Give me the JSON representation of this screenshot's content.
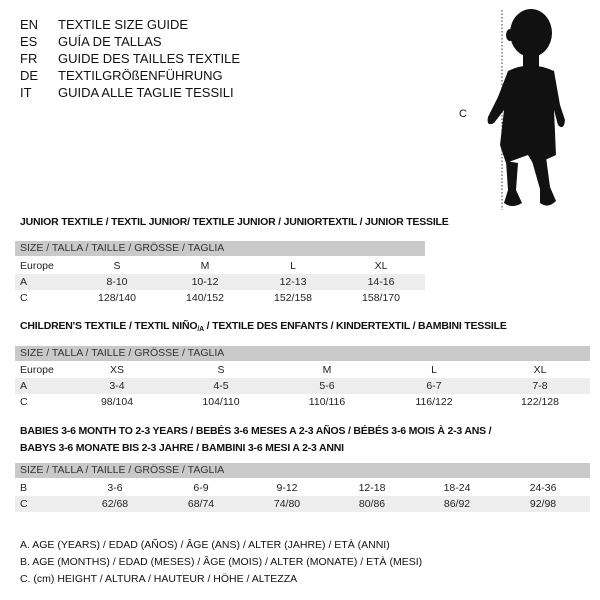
{
  "languages": [
    {
      "code": "EN",
      "text": "TEXTILE SIZE GUIDE"
    },
    {
      "code": "ES",
      "text": "GUÍA DE TALLAS"
    },
    {
      "code": "FR",
      "text": "GUIDE DES TAILLES TEXTILE"
    },
    {
      "code": "DE",
      "text": "TEXTILGRÖßENFÜHRUNG"
    },
    {
      "code": "IT",
      "text": "GUIDA ALLE TAGLIE TESSILI"
    }
  ],
  "figure": {
    "height_label": "C",
    "icon": "baby-silhouette"
  },
  "junior": {
    "title": "JUNIOR TEXTILE / TEXTIL JUNIOR/ TEXTILE JUNIOR / JUNIORTEXTIL / JUNIOR TESSILE",
    "header": "SIZE / TALLA / TAILLE / GRÖSSE / TAGLIA",
    "rows": [
      {
        "label": "Europe",
        "values": [
          "S",
          "M",
          "L",
          "XL"
        ]
      },
      {
        "label": "A",
        "values": [
          "8-10",
          "10-12",
          "12-13",
          "14-16"
        ]
      },
      {
        "label": "C",
        "values": [
          "128/140",
          "140/152",
          "152/158",
          "158/170"
        ]
      }
    ]
  },
  "children": {
    "title": "CHILDREN'S TEXTILE / TEXTIL NIÑO/A / TEXTILE DES ENFANTS / KINDERTEXTIL / BAMBINI TESSILE",
    "header": "SIZE / TALLA / TAILLE / GRÖSSE / TAGLIA",
    "rows": [
      {
        "label": "Europe",
        "values": [
          "XS",
          "S",
          "M",
          "L",
          "XL"
        ]
      },
      {
        "label": "A",
        "values": [
          "3-4",
          "4-5",
          "5-6",
          "6-7",
          "7-8"
        ]
      },
      {
        "label": "C",
        "values": [
          "98/104",
          "104/110",
          "110/116",
          "116/122",
          "122/128"
        ]
      }
    ]
  },
  "babies": {
    "title_line1": "BABIES 3-6 MONTH TO 2-3 YEARS / BEBÉS 3-6 MESES A 2-3 AÑOS / BÉBÉS 3-6 MOIS À 2-3 ANS /",
    "title_line2": "BABYS 3-6 MONATE BIS 2-3 JAHRE / BAMBINI 3-6 MESI A 2-3 ANNI",
    "header": "SIZE / TALLA / TAILLE / GRÖSSE / TAGLIA",
    "rows": [
      {
        "label": "B",
        "values": [
          "3-6",
          "6-9",
          "9-12",
          "12-18",
          "18-24",
          "24-36"
        ]
      },
      {
        "label": "C",
        "values": [
          "62/68",
          "68/74",
          "74/80",
          "80/86",
          "86/92",
          "92/98"
        ]
      }
    ]
  },
  "legend": [
    "A. AGE (YEARS) / EDAD (AÑOS) / ÂGE (ANS) / ALTER (JAHRE) / ETÀ (ANNI)",
    "B. AGE (MONTHS) / EDAD (MESES) / ÂGE (MOIS) / ALTER (MONATE) / ETÀ (MESI)",
    "C. (cm) HEIGHT / ALTURA / HAUTEUR / HÖHE / ALTEZZA"
  ],
  "colors": {
    "header_bg": "#c9c9c9",
    "shade_bg": "#ededed"
  }
}
